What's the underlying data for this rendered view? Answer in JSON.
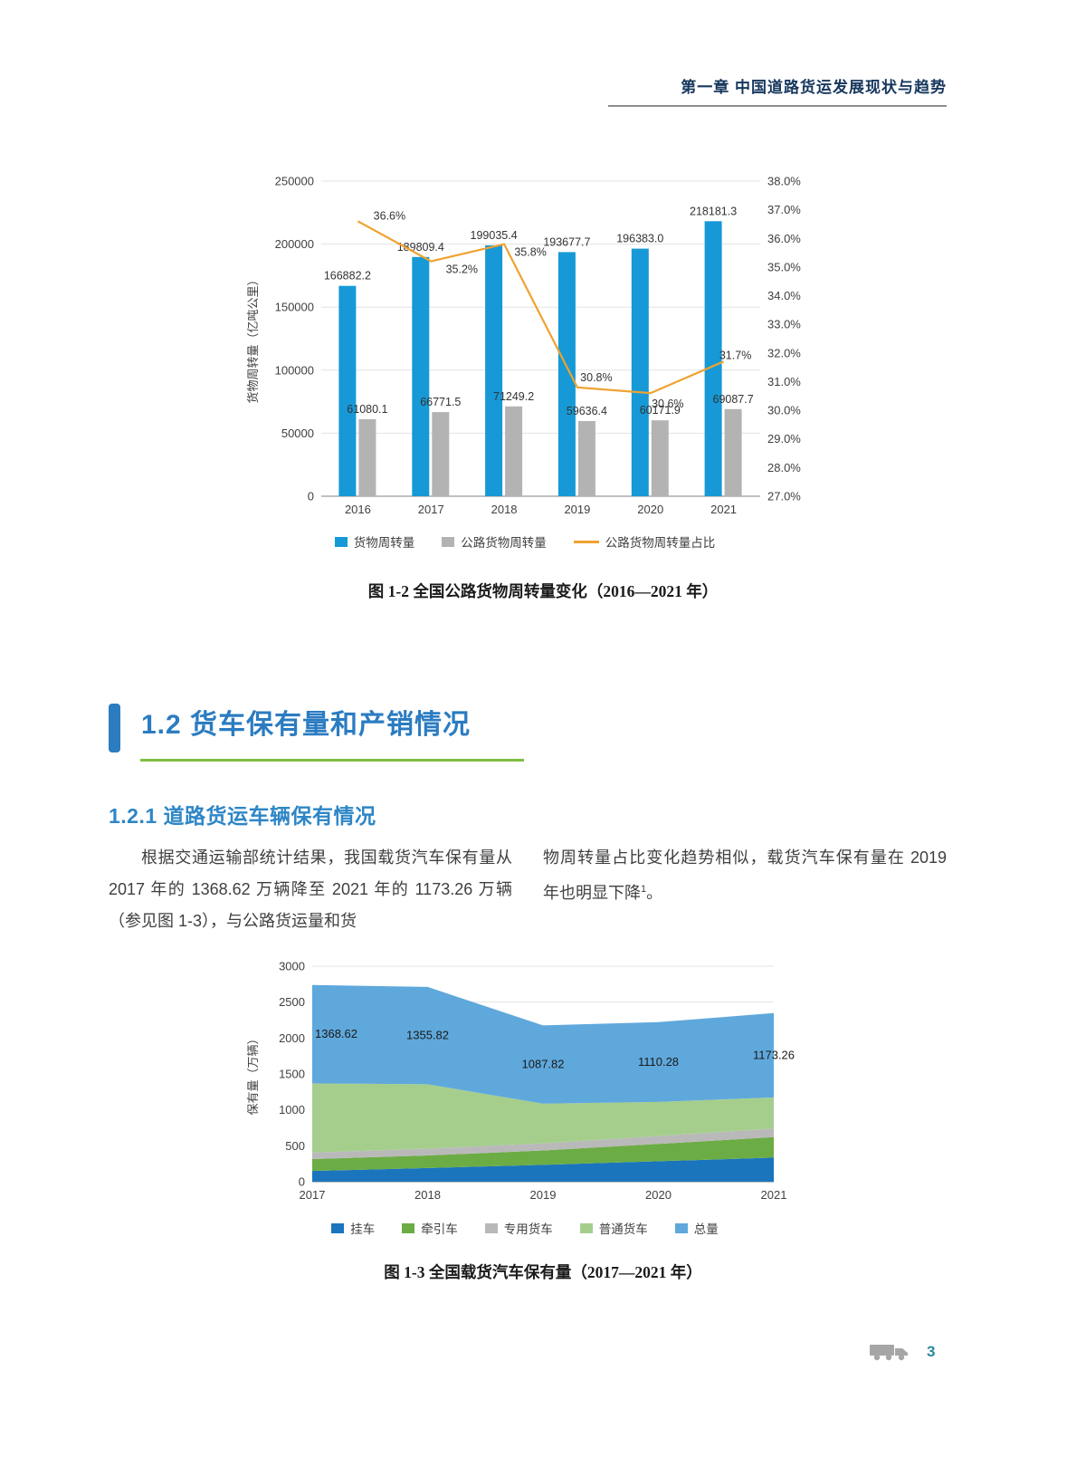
{
  "page": {
    "header": "第一章 中国道路货运发展现状与趋势",
    "page_number": "3"
  },
  "theme": {
    "accent_blue": "#2b7cc1",
    "accent_blue_light": "#2e86c6",
    "green_underline": "#7fbe42",
    "header_color": "#17375d",
    "page_number_color": "#2c8a9e"
  },
  "section": {
    "title": "1.2 货车保有量和产销情况",
    "subsection": "1.2.1 道路货运车辆保有情况",
    "para_left": "根据交通运输部统计结果，我国载货汽车保有量从 2017 年的 1368.62 万辆降至 2021 年的 1173.26 万辆（参见图 1-3），与公路货运量和货",
    "para_right_main": "物周转量占比变化趋势相似，载货汽车保有量在 2019 年也明显下降",
    "para_right_sup": "1",
    "para_right_end": "。"
  },
  "chart_data": [
    {
      "type": "bar",
      "caption": "图 1-2 全国公路货物周转量变化（2016—2021 年）",
      "categories": [
        "2016",
        "2017",
        "2018",
        "2019",
        "2020",
        "2021"
      ],
      "ylabel": "货物周转量（亿吨公里）",
      "y_left": {
        "min": 0,
        "max": 250000,
        "step": 50000
      },
      "y_right": {
        "min": 27,
        "max": 38,
        "step": 1,
        "suffix": "%"
      },
      "grid": true,
      "legend_position": "bottom",
      "series": [
        {
          "key": "freight-turnover",
          "name": "货物周转量",
          "type": "bar",
          "color": "#1699d6",
          "values": [
            166882.2,
            189809.4,
            199035.4,
            193677.7,
            196383.0,
            218181.3
          ]
        },
        {
          "key": "road-freight-turnover",
          "name": "公路货物周转量",
          "type": "bar",
          "color": "#b3b3b3",
          "values": [
            61080.1,
            66771.5,
            71249.2,
            59636.4,
            60171.9,
            69087.7
          ]
        },
        {
          "key": "road-share",
          "name": "公路货物周转量占比",
          "type": "line",
          "color": "#efa230",
          "values": [
            36.6,
            35.2,
            35.8,
            30.8,
            30.6,
            31.7
          ],
          "unit": "%"
        }
      ]
    },
    {
      "type": "area",
      "caption": "图 1-3 全国载货汽车保有量（2017—2021 年）",
      "categories": [
        "2017",
        "2018",
        "2019",
        "2020",
        "2021"
      ],
      "ylabel": "保有量（万辆）",
      "y": {
        "min": 0,
        "max": 3000,
        "step": 500
      },
      "grid": true,
      "legend_position": "bottom",
      "stacked": true,
      "series": [
        {
          "key": "trailer",
          "name": "挂车",
          "color": "#1b75bc",
          "values": [
            150,
            190,
            235,
            285,
            335
          ]
        },
        {
          "key": "tractor",
          "name": "牵引车",
          "color": "#6cac45",
          "values": [
            165,
            175,
            200,
            240,
            285
          ]
        },
        {
          "key": "special-truck",
          "name": "专用货车",
          "color": "#b9b9b9",
          "values": [
            90,
            95,
            100,
            110,
            120
          ]
        },
        {
          "key": "ordinary-truck",
          "name": "普通货车",
          "color": "#a5ce8d",
          "values": [
            963.62,
            895.82,
            552.82,
            475.28,
            433.26
          ]
        },
        {
          "key": "total",
          "name": "总量",
          "color": "#5fa8dc",
          "values": [
            1368.62,
            1355.82,
            1087.82,
            1110.28,
            1173.26
          ]
        }
      ],
      "total_labels": [
        1368.62,
        1355.82,
        1087.82,
        1110.28,
        1173.26
      ]
    }
  ]
}
